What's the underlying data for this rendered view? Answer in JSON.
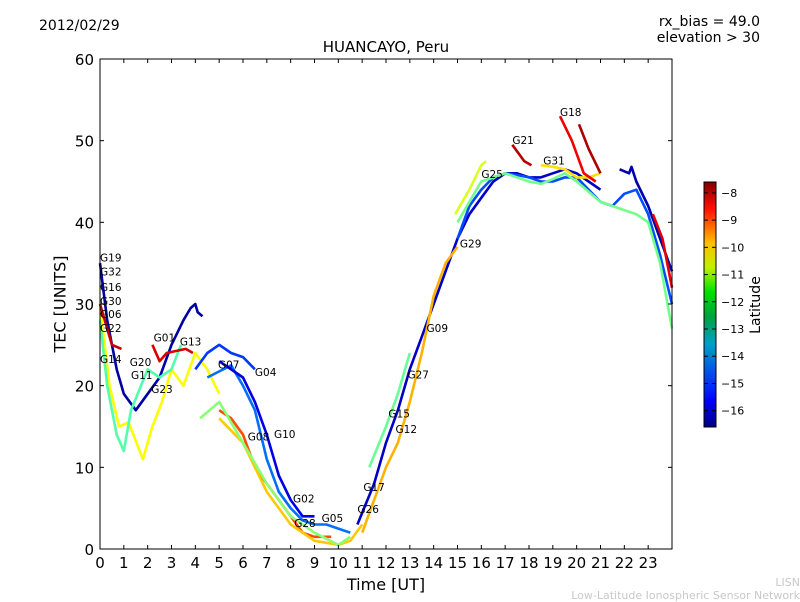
{
  "header": {
    "date": "2012/02/29",
    "rx_bias": "rx_bias = 49.0",
    "elevation": "elevation > 30"
  },
  "credit": {
    "line1": "LISN",
    "line2": "Low-Latitude Ionospheric Sensor Network"
  },
  "chart_data": {
    "type": "line",
    "title": "HUANCAYO, Peru",
    "xlabel": "Time [UT]",
    "ylabel": "TEC [UNITS]",
    "xlim": [
      0,
      24
    ],
    "ylim": [
      0,
      60
    ],
    "xticks": [
      0,
      1,
      2,
      3,
      4,
      5,
      6,
      7,
      8,
      9,
      10,
      11,
      12,
      13,
      14,
      15,
      16,
      17,
      18,
      19,
      20,
      21,
      22,
      23
    ],
    "yticks": [
      0,
      10,
      20,
      30,
      40,
      50,
      60
    ],
    "grid": false,
    "colorbar": {
      "label": "Latitude",
      "range": [
        -16.6,
        -7.6
      ],
      "ticks": [
        -8,
        -9,
        -10,
        -11,
        -12,
        -13,
        -14,
        -15,
        -16
      ],
      "tick_labels": [
        "−8",
        "−9",
        "−10",
        "−11",
        "−12",
        "−13",
        "−14",
        "−15",
        "−16"
      ],
      "colormap": "jet"
    },
    "series": [
      {
        "lat": -16.3,
        "points": [
          [
            0,
            35
          ],
          [
            0.3,
            28
          ],
          [
            0.7,
            22
          ],
          [
            1,
            19
          ],
          [
            1.5,
            17
          ],
          [
            2,
            19
          ],
          [
            2.5,
            21
          ],
          [
            3,
            25
          ],
          [
            3.5,
            28
          ],
          [
            3.8,
            29.5
          ],
          [
            4,
            30
          ],
          [
            4.1,
            29
          ],
          [
            4.3,
            28.5
          ]
        ]
      },
      {
        "lat": -11.0,
        "points": [
          [
            0,
            30
          ],
          [
            0.4,
            20
          ],
          [
            0.8,
            15
          ],
          [
            1.2,
            15.5
          ],
          [
            1.8,
            11
          ],
          [
            2.2,
            15
          ],
          [
            2.6,
            18
          ],
          [
            3,
            22
          ],
          [
            3.5,
            20
          ],
          [
            4,
            24
          ],
          [
            4.5,
            22
          ],
          [
            5,
            19
          ]
        ]
      },
      {
        "lat": -12.5,
        "points": [
          [
            0,
            28
          ],
          [
            0.3,
            20
          ],
          [
            0.7,
            14
          ],
          [
            1,
            12
          ],
          [
            1.3,
            17
          ],
          [
            2,
            22
          ],
          [
            2.5,
            21
          ],
          [
            3,
            22
          ],
          [
            3.4,
            25
          ]
        ]
      },
      {
        "lat": -8.2,
        "points": [
          [
            0,
            30
          ],
          [
            0.5,
            25
          ],
          [
            0.9,
            24.5
          ]
        ]
      },
      {
        "lat": -8.4,
        "points": [
          [
            2.2,
            25
          ],
          [
            2.5,
            23
          ],
          [
            2.8,
            24
          ],
          [
            3.6,
            24.5
          ],
          [
            3.9,
            24
          ]
        ]
      },
      {
        "lat": -15.0,
        "points": [
          [
            4,
            22
          ],
          [
            4.5,
            24
          ],
          [
            5,
            25
          ],
          [
            5.5,
            24
          ],
          [
            6,
            23.5
          ],
          [
            6.5,
            22
          ]
        ]
      },
      {
        "lat": -14.5,
        "points": [
          [
            4.5,
            21
          ],
          [
            5.5,
            22.5
          ],
          [
            6,
            20
          ],
          [
            6.5,
            17
          ],
          [
            7,
            11
          ],
          [
            7.5,
            7
          ],
          [
            8,
            5
          ],
          [
            8.5,
            3.5
          ],
          [
            9,
            3
          ],
          [
            9.5,
            3
          ],
          [
            10,
            2.5
          ],
          [
            10.5,
            2
          ]
        ]
      },
      {
        "lat": -15.7,
        "points": [
          [
            5,
            23
          ],
          [
            6,
            21
          ],
          [
            6.5,
            18
          ],
          [
            7,
            14
          ],
          [
            7.5,
            9
          ],
          [
            8,
            6
          ],
          [
            8.5,
            4
          ],
          [
            9,
            4
          ]
        ]
      },
      {
        "lat": -9.4,
        "points": [
          [
            5,
            17
          ],
          [
            5.5,
            16
          ],
          [
            6,
            14
          ],
          [
            6.5,
            10
          ],
          [
            7,
            8
          ],
          [
            7.5,
            6
          ],
          [
            8,
            4
          ],
          [
            8.5,
            2
          ],
          [
            9,
            1.5
          ],
          [
            9.7,
            1.5
          ]
        ]
      },
      {
        "lat": -10.5,
        "points": [
          [
            5,
            16
          ],
          [
            6,
            13
          ],
          [
            7,
            7
          ],
          [
            8,
            3
          ],
          [
            9,
            1
          ],
          [
            10,
            0.5
          ],
          [
            10.5,
            1
          ],
          [
            11,
            3
          ]
        ]
      },
      {
        "lat": -12.0,
        "points": [
          [
            4.2,
            16
          ],
          [
            5,
            18
          ],
          [
            6,
            13
          ],
          [
            7,
            8
          ],
          [
            8,
            4
          ],
          [
            9,
            2
          ],
          [
            10,
            0.5
          ],
          [
            10.5,
            1.5
          ]
        ]
      },
      {
        "lat": -16.0,
        "points": [
          [
            10.8,
            3
          ],
          [
            11.5,
            8
          ],
          [
            12,
            13
          ],
          [
            12.5,
            17
          ],
          [
            13,
            22
          ],
          [
            13.5,
            26
          ],
          [
            14,
            30
          ],
          [
            14.5,
            34
          ],
          [
            15,
            38
          ],
          [
            15.5,
            41
          ],
          [
            16,
            43
          ],
          [
            16.5,
            45
          ],
          [
            17,
            46
          ],
          [
            17.5,
            46
          ],
          [
            18,
            45.5
          ],
          [
            18.5,
            45.5
          ],
          [
            19,
            46
          ],
          [
            19.5,
            46.5
          ],
          [
            20,
            46
          ],
          [
            20.5,
            45
          ],
          [
            21,
            44
          ]
        ]
      },
      {
        "lat": -10.3,
        "points": [
          [
            11,
            2
          ],
          [
            11.5,
            6
          ],
          [
            12,
            10
          ],
          [
            12.5,
            13
          ],
          [
            13,
            18
          ],
          [
            13.5,
            24
          ],
          [
            14,
            31
          ],
          [
            14.5,
            35
          ],
          [
            15,
            37
          ]
        ]
      },
      {
        "lat": -12.3,
        "points": [
          [
            11.3,
            10
          ],
          [
            12,
            15
          ],
          [
            12.5,
            19
          ],
          [
            13,
            24
          ]
        ]
      },
      {
        "lat": -11.3,
        "points": [
          [
            14.9,
            41
          ],
          [
            15.5,
            44
          ],
          [
            16,
            47
          ],
          [
            16.2,
            47.5
          ]
        ]
      },
      {
        "lat": -14.8,
        "points": [
          [
            15,
            38
          ],
          [
            15.5,
            42
          ],
          [
            16,
            44
          ],
          [
            16.5,
            45.5
          ],
          [
            17,
            46
          ],
          [
            17.5,
            45.8
          ],
          [
            18,
            45.5
          ],
          [
            18.5,
            45
          ],
          [
            19,
            45
          ],
          [
            19.5,
            45.5
          ],
          [
            20,
            45.5
          ],
          [
            20.5,
            44
          ],
          [
            21,
            42.5
          ],
          [
            21.5,
            42
          ],
          [
            22,
            43.5
          ],
          [
            22.5,
            44
          ],
          [
            23,
            41
          ],
          [
            23.5,
            36
          ],
          [
            24,
            30
          ]
        ]
      },
      {
        "lat": -12.2,
        "points": [
          [
            15,
            40
          ],
          [
            16,
            45
          ],
          [
            17,
            46
          ],
          [
            18,
            45
          ],
          [
            18.5,
            44.7
          ],
          [
            19,
            45.3
          ],
          [
            19.5,
            46
          ],
          [
            20,
            45
          ],
          [
            21,
            42.5
          ],
          [
            22,
            41.5
          ],
          [
            22.5,
            41
          ],
          [
            23,
            40
          ],
          [
            23.5,
            35
          ],
          [
            24,
            27
          ]
        ]
      },
      {
        "lat": -10.7,
        "points": [
          [
            18.5,
            47
          ],
          [
            19,
            46.8
          ],
          [
            19.5,
            46.5
          ],
          [
            20,
            45.5
          ],
          [
            20.5,
            45.5
          ],
          [
            21,
            46
          ]
        ]
      },
      {
        "lat": -8.1,
        "points": [
          [
            17.3,
            49.5
          ],
          [
            17.8,
            47.5
          ],
          [
            18.1,
            47
          ]
        ]
      },
      {
        "lat": -8.6,
        "points": [
          [
            19.3,
            53
          ],
          [
            19.8,
            50
          ],
          [
            20.3,
            46
          ],
          [
            20.8,
            45
          ]
        ]
      },
      {
        "lat": -8.0,
        "points": [
          [
            20.1,
            52
          ],
          [
            20.5,
            49
          ],
          [
            21,
            46
          ]
        ]
      },
      {
        "lat": -16.2,
        "points": [
          [
            21.8,
            46.5
          ],
          [
            22.2,
            46
          ],
          [
            22.3,
            46.8
          ],
          [
            22.5,
            45
          ],
          [
            23,
            42
          ],
          [
            23.5,
            38
          ],
          [
            24,
            34
          ]
        ]
      },
      {
        "lat": -8.5,
        "points": [
          [
            23.2,
            41
          ],
          [
            23.6,
            38
          ],
          [
            24,
            32
          ]
        ]
      }
    ],
    "annotations": [
      {
        "text": "G19",
        "x": 0,
        "y": 35.2
      },
      {
        "text": "G32",
        "x": 0,
        "y": 34
      },
      {
        "text": "G16",
        "x": 0,
        "y": 31.6
      },
      {
        "text": "G30",
        "x": 0,
        "y": 31
      },
      {
        "text": "G06",
        "x": 0,
        "y": 30
      },
      {
        "text": "G22",
        "x": 0,
        "y": 28.8
      },
      {
        "text": "G14",
        "x": 0,
        "y": 22.8
      },
      {
        "text": "G20",
        "x": 1.25,
        "y": 22.4
      },
      {
        "text": "G11",
        "x": 1.3,
        "y": 21.9
      },
      {
        "text": "G01",
        "x": 2.25,
        "y": 25.4
      },
      {
        "text": "G23",
        "x": 2.15,
        "y": 24.6
      },
      {
        "text": "G13",
        "x": 3.35,
        "y": 24.9
      },
      {
        "text": "G07",
        "x": 4.95,
        "y": 22.1
      },
      {
        "text": "G04",
        "x": 6.5,
        "y": 21.2
      },
      {
        "text": "G08",
        "x": 6.2,
        "y": 13.3
      },
      {
        "text": "G10",
        "x": 7.3,
        "y": 13.6
      },
      {
        "text": "G02",
        "x": 8.1,
        "y": 5.7
      },
      {
        "text": "G28",
        "x": 8.15,
        "y": 2.7
      },
      {
        "text": "G05",
        "x": 9.3,
        "y": 3.3
      },
      {
        "text": "G26",
        "x": 10.8,
        "y": 4.4
      },
      {
        "text": "G17",
        "x": 11.05,
        "y": 7.1
      },
      {
        "text": "G15",
        "x": 12.1,
        "y": 16.1
      },
      {
        "text": "G12",
        "x": 12.4,
        "y": 14.2
      },
      {
        "text": "G27",
        "x": 12.9,
        "y": 20.9
      },
      {
        "text": "G09",
        "x": 13.7,
        "y": 26.6
      },
      {
        "text": "G29",
        "x": 15.1,
        "y": 36.9
      },
      {
        "text": "G25",
        "x": 16.0,
        "y": 45.4
      },
      {
        "text": "G21",
        "x": 17.3,
        "y": 49.6
      },
      {
        "text": "G31",
        "x": 18.6,
        "y": 47.1
      },
      {
        "text": "G18",
        "x": 19.3,
        "y": 53
      }
    ]
  }
}
